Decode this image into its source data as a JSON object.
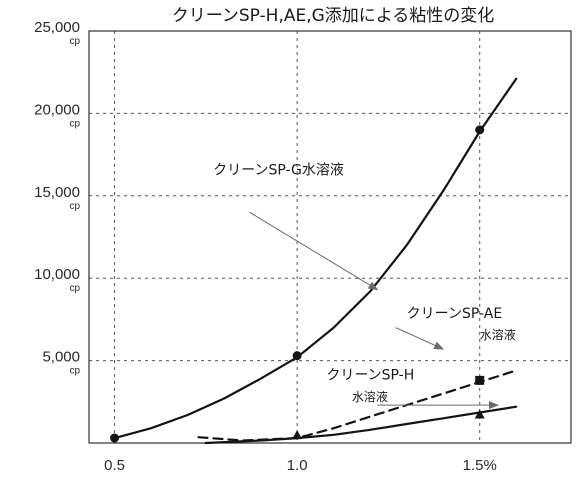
{
  "chart_data": {
    "type": "line",
    "title": "クリーンSP-H,AE,G添加による粘性の変化",
    "xlabel": "",
    "ylabel": "",
    "x_ticks": [
      {
        "value": 0.5,
        "label": "0.5"
      },
      {
        "value": 1.0,
        "label": "1.0"
      },
      {
        "value": 1.5,
        "label": "1.5%"
      }
    ],
    "y_ticks": [
      {
        "value": 5000,
        "label": "5,000",
        "unit": "cp"
      },
      {
        "value": 10000,
        "label": "10,000",
        "unit": "cp"
      },
      {
        "value": 15000,
        "label": "15,000",
        "unit": "cp"
      },
      {
        "value": 20000,
        "label": "20,000",
        "unit": "cp"
      },
      {
        "value": 25000,
        "label": "25,000",
        "unit": "cp"
      }
    ],
    "xlim": [
      0.43,
      1.75
    ],
    "ylim": [
      0,
      25000
    ],
    "grid": "dotted",
    "series": [
      {
        "key": "sp-g",
        "name": "クリーンSP-G水溶液",
        "color": "#141414",
        "style": "solid",
        "marker": "circle",
        "curve": [
          [
            0.5,
            300
          ],
          [
            0.6,
            900
          ],
          [
            0.7,
            1700
          ],
          [
            0.8,
            2700
          ],
          [
            0.9,
            3900
          ],
          [
            1.0,
            5200
          ],
          [
            1.1,
            7000
          ],
          [
            1.2,
            9200
          ],
          [
            1.3,
            12000
          ],
          [
            1.4,
            15300
          ],
          [
            1.5,
            18900
          ],
          [
            1.6,
            22100
          ]
        ],
        "markers": [
          [
            0.5,
            300
          ],
          [
            1.0,
            5300
          ],
          [
            1.5,
            19000
          ]
        ]
      },
      {
        "key": "sp-ae",
        "name": "クリーンSP-AE水溶液",
        "color": "#141414",
        "style": "dashed",
        "marker": "square",
        "curve": [
          [
            0.73,
            350
          ],
          [
            0.85,
            150
          ],
          [
            1.0,
            300
          ],
          [
            1.1,
            900
          ],
          [
            1.2,
            1600
          ],
          [
            1.3,
            2300
          ],
          [
            1.4,
            3000
          ],
          [
            1.5,
            3700
          ],
          [
            1.6,
            4400
          ]
        ],
        "markers": [
          [
            1.5,
            3800
          ]
        ]
      },
      {
        "key": "sp-h",
        "name": "クリーンSP-H水溶液",
        "color": "#141414",
        "style": "solid",
        "marker": "triangle",
        "curve": [
          [
            0.75,
            0
          ],
          [
            0.9,
            150
          ],
          [
            1.0,
            300
          ],
          [
            1.1,
            500
          ],
          [
            1.2,
            800
          ],
          [
            1.3,
            1150
          ],
          [
            1.4,
            1500
          ],
          [
            1.5,
            1850
          ],
          [
            1.6,
            2200
          ]
        ],
        "markers": [
          [
            1.0,
            450
          ],
          [
            1.5,
            1700
          ]
        ]
      }
    ],
    "annotations": [
      {
        "key": "anno-g",
        "lines": [
          "クリーンSP-G水溶液"
        ],
        "text_at": [
          0.77,
          16300
        ],
        "small_second_line": false,
        "arrow_from": [
          0.87,
          14000
        ],
        "arrow_to": [
          1.22,
          9300
        ]
      },
      {
        "key": "anno-ae",
        "lines": [
          "クリーンSP-AE",
          "水溶液"
        ],
        "text_at": [
          1.3,
          7600
        ],
        "second_at": [
          1.5,
          6300
        ],
        "arrow_from": [
          1.27,
          7000
        ],
        "arrow_to": [
          1.4,
          5700
        ]
      },
      {
        "key": "anno-h",
        "lines": [
          "クリーンSP-H",
          "水溶液"
        ],
        "text_at": [
          1.08,
          3850
        ],
        "second_at": [
          1.15,
          2550
        ],
        "arrow_from": [
          1.22,
          2300
        ],
        "arrow_to": [
          1.55,
          2300
        ]
      }
    ]
  }
}
